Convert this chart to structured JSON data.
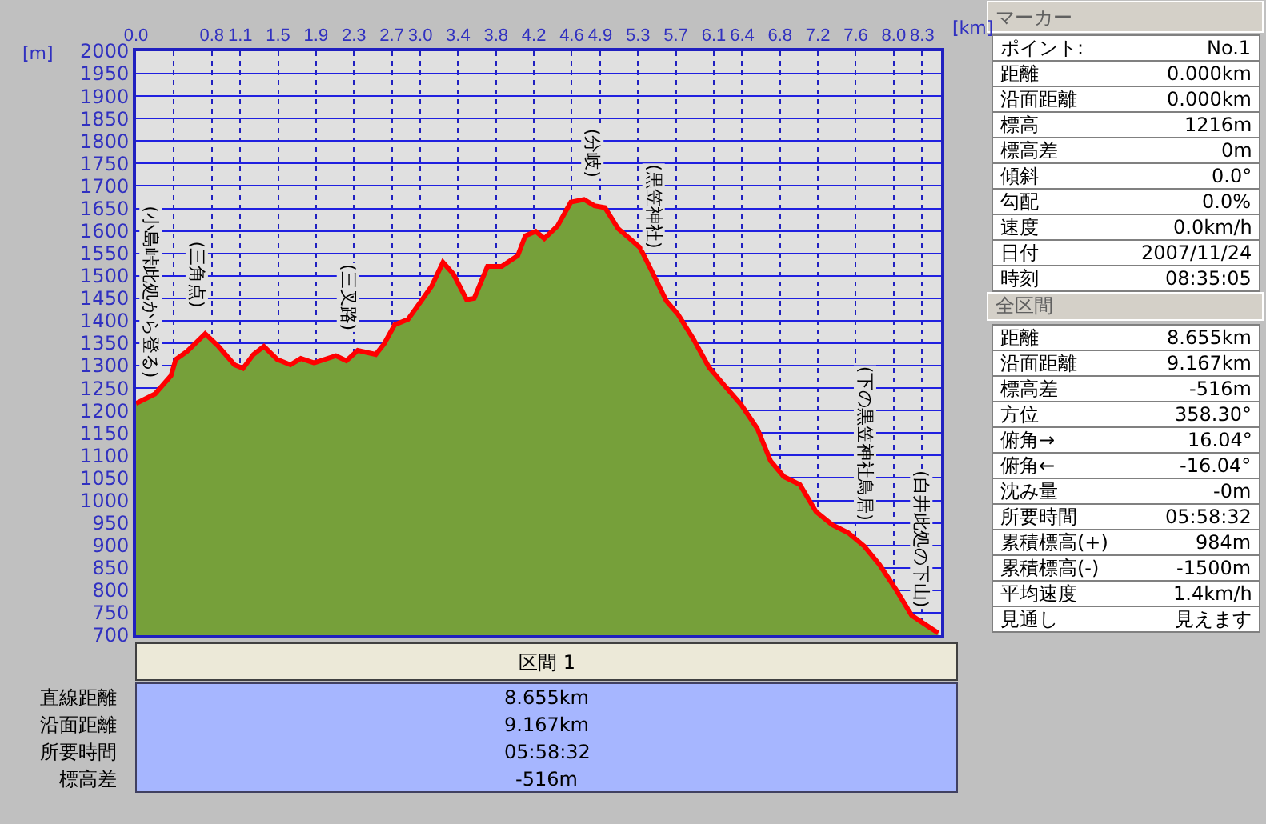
{
  "chart_data": [
    {
      "type": "area",
      "xlabel": "[km]",
      "ylabel": "[m]",
      "xlim": [
        0,
        8.5
      ],
      "ylim": [
        700,
        2000
      ],
      "xticks": [
        {
          "value": 0,
          "label": "0.0"
        },
        {
          "value": 0.4,
          "label": null
        },
        0.8,
        1.1,
        1.5,
        1.9,
        2.3,
        2.7,
        {
          "value": 3,
          "label": "3.0"
        },
        3.4,
        3.8,
        4.2,
        4.6,
        4.9,
        5.3,
        5.7,
        6.1,
        6.4,
        6.8,
        7.2,
        7.6,
        {
          "value": 8,
          "label": "8.0"
        },
        8.3
      ],
      "yticks": [
        700,
        750,
        800,
        850,
        900,
        950,
        1000,
        1050,
        1100,
        1150,
        1200,
        1250,
        1300,
        1350,
        1400,
        1450,
        1500,
        1550,
        1600,
        1650,
        1700,
        1750,
        1800,
        1850,
        1900,
        1950,
        2000
      ],
      "grid": true,
      "marker": "none",
      "line_style": "solid",
      "series": [
        {
          "color": "#76a03a",
          "x": [
            0.0,
            0.2,
            0.37,
            0.42,
            0.54,
            0.73,
            0.87,
            1.04,
            1.13,
            1.24,
            1.35,
            1.49,
            1.63,
            1.74,
            1.88,
            2.11,
            2.22,
            2.34,
            2.53,
            2.62,
            2.73,
            2.87,
            3.01,
            3.12,
            3.24,
            3.35,
            3.49,
            3.57,
            3.71,
            3.86,
            4.03,
            4.11,
            4.22,
            4.31,
            4.45,
            4.59,
            4.73,
            4.84,
            4.95,
            5.09,
            5.24,
            5.32,
            5.46,
            5.6,
            5.72,
            5.88,
            6.05,
            6.22,
            6.39,
            6.56,
            6.7,
            6.84,
            7.01,
            7.18,
            7.35,
            7.52,
            7.69,
            7.85,
            8.02,
            8.19,
            8.36,
            8.47
          ],
          "values": [
            1216,
            1237,
            1278,
            1314,
            1332,
            1371,
            1343,
            1302,
            1294,
            1325,
            1343,
            1314,
            1302,
            1316,
            1306,
            1322,
            1311,
            1334,
            1325,
            1349,
            1391,
            1403,
            1444,
            1477,
            1530,
            1504,
            1447,
            1450,
            1521,
            1521,
            1545,
            1589,
            1599,
            1583,
            1611,
            1664,
            1670,
            1656,
            1652,
            1605,
            1578,
            1563,
            1504,
            1444,
            1415,
            1361,
            1296,
            1254,
            1213,
            1160,
            1088,
            1053,
            1035,
            975,
            946,
            928,
            898,
            857,
            803,
            744,
            720,
            705
          ]
        },
        {
          "type": "line",
          "color": "#ff0000",
          "x": [
            0.0,
            0.2,
            0.37,
            0.42,
            0.54,
            0.73,
            0.87,
            1.04,
            1.13,
            1.24,
            1.35,
            1.49,
            1.63,
            1.74,
            1.88,
            2.11,
            2.22,
            2.34,
            2.53,
            2.62,
            2.73,
            2.87,
            3.01,
            3.12,
            3.24,
            3.35,
            3.49,
            3.57,
            3.71,
            3.86,
            4.03,
            4.11,
            4.22,
            4.31,
            4.45,
            4.59,
            4.73,
            4.84,
            4.95,
            5.09,
            5.24,
            5.32,
            5.46,
            5.6,
            5.72,
            5.88,
            6.05,
            6.22,
            6.39,
            6.56,
            6.7,
            6.84,
            7.01,
            7.18,
            7.35,
            7.52,
            7.69,
            7.85,
            8.02,
            8.19,
            8.36,
            8.47
          ],
          "values": [
            1216,
            1237,
            1278,
            1314,
            1332,
            1371,
            1343,
            1302,
            1294,
            1325,
            1343,
            1314,
            1302,
            1316,
            1306,
            1322,
            1311,
            1334,
            1325,
            1349,
            1391,
            1403,
            1444,
            1477,
            1530,
            1504,
            1447,
            1450,
            1521,
            1521,
            1545,
            1589,
            1599,
            1583,
            1611,
            1664,
            1670,
            1656,
            1652,
            1605,
            1578,
            1563,
            1504,
            1444,
            1415,
            1361,
            1296,
            1254,
            1213,
            1160,
            1088,
            1053,
            1035,
            975,
            946,
            928,
            898,
            857,
            803,
            744,
            720,
            705
          ]
        }
      ],
      "annotations": [
        {
          "text": "(小島峠此処から登る)",
          "x": 0.0,
          "y": 1216
        },
        {
          "text": "(三角点)",
          "x": 0.64,
          "y": 1371
        },
        {
          "text": "(三叉路)",
          "x": 2.23,
          "y": 1320
        },
        {
          "text": "(分岐)",
          "x": 4.81,
          "y": 1660
        },
        {
          "text": "(黒笠神社)",
          "x": 5.46,
          "y": 1504
        },
        {
          "text": "(下の黒笠神社鳥居)",
          "x": 7.69,
          "y": 898
        },
        {
          "text": "(白井此処の下山)",
          "x": 8.45,
          "y": 705
        }
      ]
    },
    {
      "type": "other",
      "title": "マーカー",
      "annotations": [
        "ポイント:",
        "No.1",
        "距離",
        "0.000km",
        "沿面距離",
        "0.000km",
        "標高",
        "1216m",
        "標高差",
        "0m",
        "傾斜",
        "0.0°",
        "勾配",
        "0.0%",
        "速度",
        "0.0km/h",
        "日付",
        "2007/11/24",
        "時刻",
        "08:35:05"
      ]
    },
    {
      "type": "other",
      "title": "全区間",
      "annotations": [
        "距離",
        "8.655km",
        "沿面距離",
        "9.167km",
        "標高差",
        "-516m",
        "方位",
        "358.30°",
        "俯角→",
        "16.04°",
        "俯角←",
        "-16.04°",
        "沈み量",
        "-0m",
        "所要時間",
        "05:58:32",
        "累積標高(+)",
        "984m",
        "累積標高(-)",
        "-1500m",
        "平均速度",
        "1.4km/h",
        "見通し",
        "見えます"
      ]
    },
    {
      "type": "other",
      "title": "区間 1",
      "annotations": [
        "直線距離",
        "8.655km",
        "沿面距離",
        "9.167km",
        "所要時間",
        "05:58:32",
        "標高差",
        "-516m"
      ]
    }
  ]
}
